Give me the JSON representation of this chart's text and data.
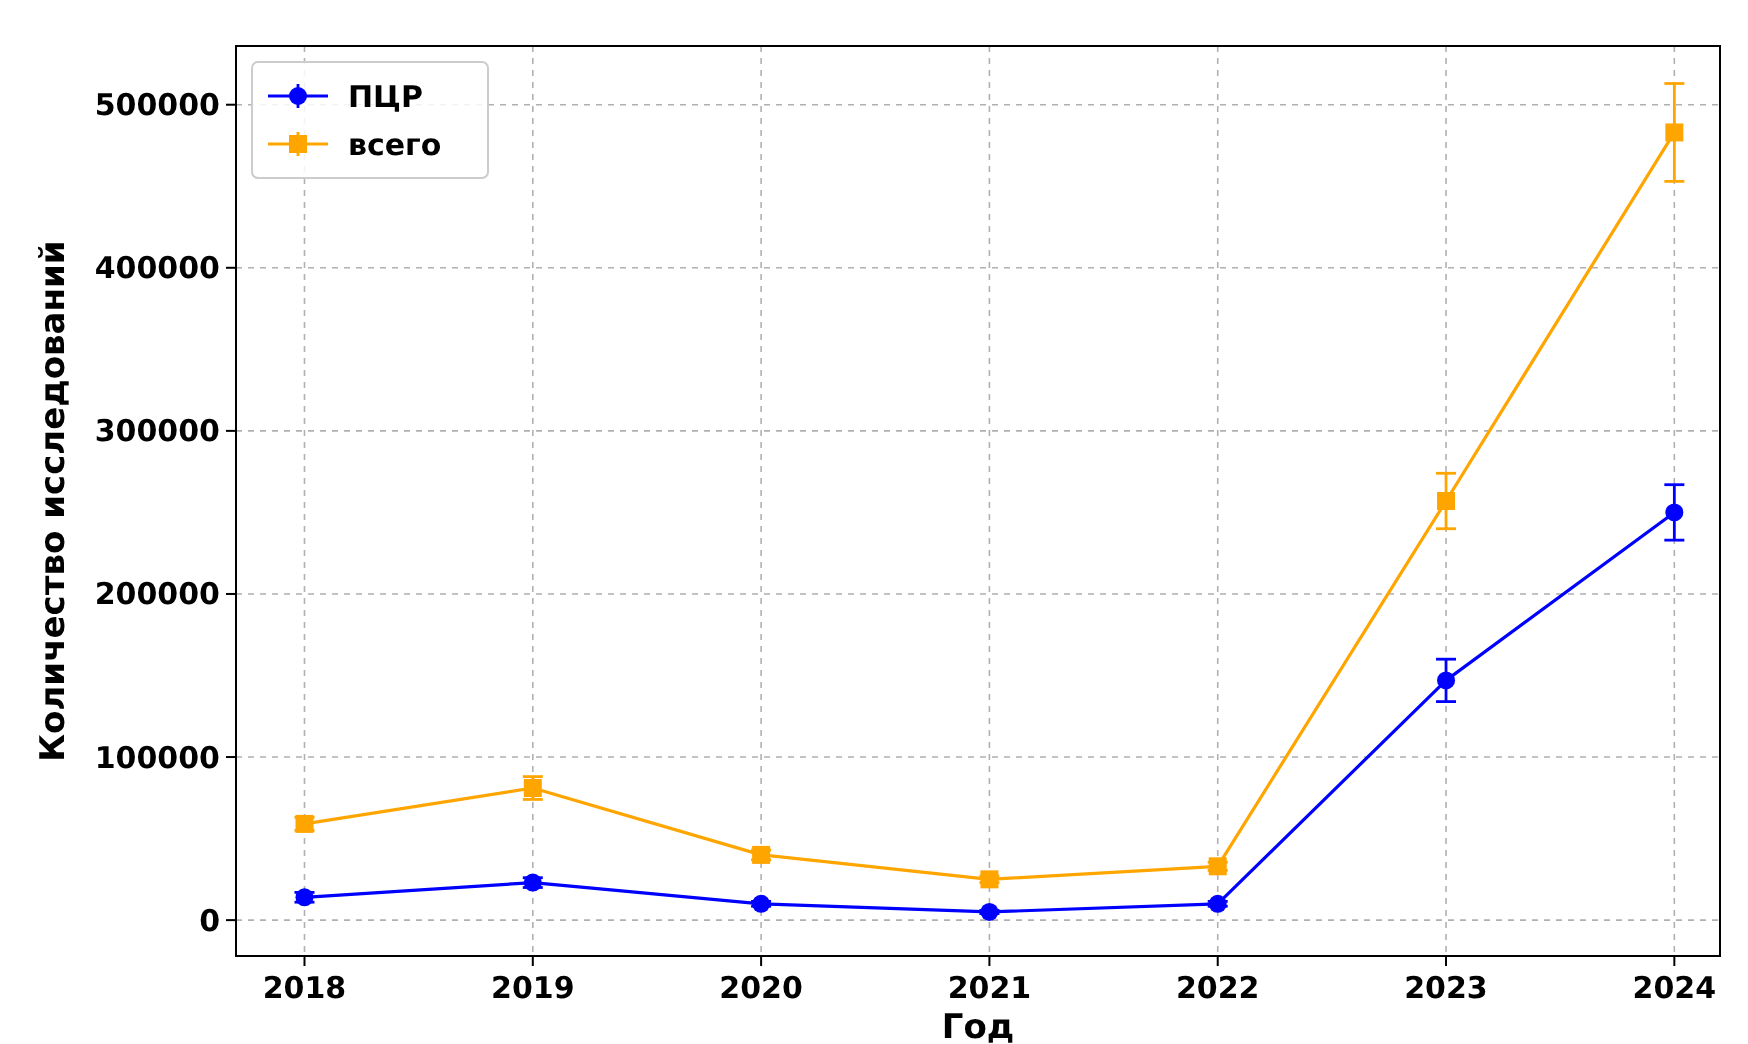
{
  "chart_data": {
    "type": "line",
    "xlabel": "Год",
    "ylabel": "Количество исследований",
    "x": [
      2018,
      2019,
      2020,
      2021,
      2022,
      2023,
      2024
    ],
    "xlim": [
      2017.7,
      2024.2
    ],
    "xticks": [
      2018,
      2019,
      2020,
      2021,
      2022,
      2023,
      2024
    ],
    "ylim": [
      -22000,
      536000
    ],
    "yticks": [
      0,
      100000,
      200000,
      300000,
      400000,
      500000
    ],
    "grid": true,
    "legend": "top left",
    "series": [
      {
        "name": "ПЦР",
        "color": "#0000ff",
        "marker": "circle",
        "values": [
          14000,
          23000,
          10000,
          5000,
          10000,
          147000,
          250000
        ],
        "errors": [
          3000,
          3000,
          1500,
          1000,
          1500,
          13000,
          17000
        ]
      },
      {
        "name": "всего",
        "color": "#ffa500",
        "marker": "square",
        "values": [
          59000,
          81000,
          40000,
          25000,
          33000,
          257000,
          483000
        ],
        "errors": [
          4000,
          7000,
          3000,
          2000,
          2500,
          17000,
          30000
        ]
      }
    ]
  }
}
